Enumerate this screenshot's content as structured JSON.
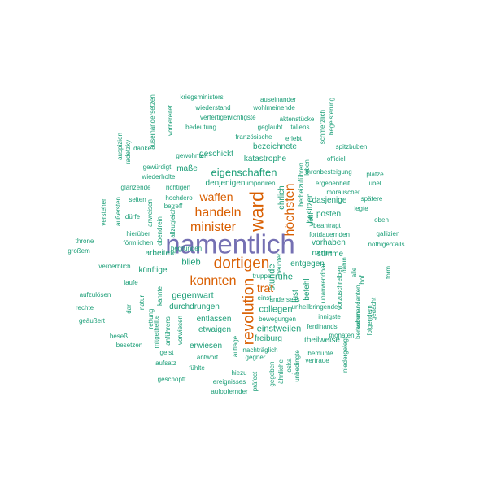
{
  "palette": {
    "large": "#7570b3",
    "medium": "#d95f02",
    "small": "#1b9e77"
  },
  "words": [
    {
      "text": "namentlich",
      "size": "large",
      "rank": 1
    },
    {
      "text": "dortigen",
      "size": "medium",
      "rank": 2
    },
    {
      "text": "revolution",
      "size": "medium",
      "rank": 2
    },
    {
      "text": "ward",
      "size": "medium",
      "rank": 2
    },
    {
      "text": "konnten",
      "size": "medium",
      "rank": 3
    },
    {
      "text": "minister",
      "size": "medium",
      "rank": 3
    },
    {
      "text": "handeln",
      "size": "medium",
      "rank": 3
    },
    {
      "text": "höchsten",
      "size": "medium",
      "rank": 3
    },
    {
      "text": "waffen",
      "size": "medium",
      "rank": 3
    },
    {
      "text": "trat",
      "size": "medium",
      "rank": 3
    },
    {
      "text": "eigenschaften",
      "size": "small",
      "rank": 4
    },
    {
      "text": "gegenwart",
      "size": "small",
      "rank": 4
    },
    {
      "text": "stunde",
      "size": "small",
      "rank": 4
    },
    {
      "text": "collegen",
      "size": "small",
      "rank": 4
    },
    {
      "text": "blieb",
      "size": "small",
      "rank": 4
    },
    {
      "text": "ruhe",
      "size": "small",
      "rank": 4
    },
    {
      "text": "einstweilen",
      "size": "small",
      "rank": 4
    },
    {
      "text": "freiburg",
      "size": "small",
      "rank": 5
    },
    {
      "text": "durchdrungen",
      "size": "small",
      "rank": 5
    },
    {
      "text": "entlassen",
      "size": "small",
      "rank": 5
    },
    {
      "text": "etwaigen",
      "size": "small",
      "rank": 5
    },
    {
      "text": "posten",
      "size": "small",
      "rank": 5
    },
    {
      "text": "dasjenige",
      "size": "small",
      "rank": 5
    },
    {
      "text": "stimme",
      "size": "small",
      "rank": 5
    },
    {
      "text": "vorhaben",
      "size": "small",
      "rank": 5
    },
    {
      "text": "entgegen",
      "size": "small",
      "rank": 5
    },
    {
      "text": "name",
      "size": "small",
      "rank": 5
    },
    {
      "text": "denjenigen",
      "size": "small",
      "rank": 5
    },
    {
      "text": "bezeichnete",
      "size": "small",
      "rank": 5
    },
    {
      "text": "geschickt",
      "size": "small",
      "rank": 5
    },
    {
      "text": "katastrophe",
      "size": "small",
      "rank": 5
    },
    {
      "text": "maße",
      "size": "small",
      "rank": 5
    },
    {
      "text": "arbeitete",
      "size": "small",
      "rank": 5
    },
    {
      "text": "künftige",
      "size": "small",
      "rank": 5
    },
    {
      "text": "erwiesen",
      "size": "small",
      "rank": 5
    },
    {
      "text": "ehrlich",
      "size": "small",
      "rank": 5
    },
    {
      "text": "besitzen",
      "size": "small",
      "rank": 5
    },
    {
      "text": "theilweise",
      "size": "small",
      "rank": 5
    },
    {
      "text": "lust",
      "size": "small",
      "rank": 5
    },
    {
      "text": "befehl",
      "size": "small",
      "rank": 5
    },
    {
      "text": "kriegsministers",
      "size": "small",
      "rank": 6
    },
    {
      "text": "auseinander",
      "size": "small",
      "rank": 6
    },
    {
      "text": "wiederstand",
      "size": "small",
      "rank": 6
    },
    {
      "text": "wohlmeinende",
      "size": "small",
      "rank": 6
    },
    {
      "text": "verfertiger",
      "size": "small",
      "rank": 6
    },
    {
      "text": "wichtigste",
      "size": "small",
      "rank": 6
    },
    {
      "text": "aktenstücke",
      "size": "small",
      "rank": 6
    },
    {
      "text": "bedeutung",
      "size": "small",
      "rank": 6
    },
    {
      "text": "geglaubt",
      "size": "small",
      "rank": 6
    },
    {
      "text": "italiens",
      "size": "small",
      "rank": 6
    },
    {
      "text": "französische",
      "size": "small",
      "rank": 6
    },
    {
      "text": "erlebt",
      "size": "small",
      "rank": 6
    },
    {
      "text": "spitzbuben",
      "size": "small",
      "rank": 6
    },
    {
      "text": "danke",
      "size": "small",
      "rank": 6
    },
    {
      "text": "gewohnten",
      "size": "small",
      "rank": 6
    },
    {
      "text": "officiell",
      "size": "small",
      "rank": 6
    },
    {
      "text": "gewürdigt",
      "size": "small",
      "rank": 6
    },
    {
      "text": "thronbesteigung",
      "size": "small",
      "rank": 6
    },
    {
      "text": "plätze",
      "size": "small",
      "rank": 6
    },
    {
      "text": "wiederholte",
      "size": "small",
      "rank": 6
    },
    {
      "text": "imponiren",
      "size": "small",
      "rank": 6
    },
    {
      "text": "ergebenheit",
      "size": "small",
      "rank": 6
    },
    {
      "text": "übel",
      "size": "small",
      "rank": 6
    },
    {
      "text": "glänzende",
      "size": "small",
      "rank": 6
    },
    {
      "text": "richtigen",
      "size": "small",
      "rank": 6
    },
    {
      "text": "moralischer",
      "size": "small",
      "rank": 6
    },
    {
      "text": "seiten",
      "size": "small",
      "rank": 6
    },
    {
      "text": "hochdero",
      "size": "small",
      "rank": 6
    },
    {
      "text": "spätere",
      "size": "small",
      "rank": 6
    },
    {
      "text": "betreff",
      "size": "small",
      "rank": 6
    },
    {
      "text": "legte",
      "size": "small",
      "rank": 6
    },
    {
      "text": "dürfe",
      "size": "small",
      "rank": 6
    },
    {
      "text": "beantragt",
      "size": "small",
      "rank": 6
    },
    {
      "text": "oben",
      "size": "small",
      "rank": 6
    },
    {
      "text": "hierüber",
      "size": "small",
      "rank": 6
    },
    {
      "text": "fortdauernden",
      "size": "small",
      "rank": 6
    },
    {
      "text": "gallizien",
      "size": "small",
      "rank": 6
    },
    {
      "text": "throne",
      "size": "small",
      "rank": 6
    },
    {
      "text": "förmlichen",
      "size": "small",
      "rank": 6
    },
    {
      "text": "nöthigenfalls",
      "size": "small",
      "rank": 6
    },
    {
      "text": "großem",
      "size": "small",
      "rank": 6
    },
    {
      "text": "begründen",
      "size": "small",
      "rank": 6
    },
    {
      "text": "verderblich",
      "size": "small",
      "rank": 6
    },
    {
      "text": "laufe",
      "size": "small",
      "rank": 6
    },
    {
      "text": "truppe",
      "size": "small",
      "rank": 6
    },
    {
      "text": "aufzulösen",
      "size": "small",
      "rank": 6
    },
    {
      "text": "einst",
      "size": "small",
      "rank": 6
    },
    {
      "text": "unheilbringende",
      "size": "small",
      "rank": 6
    },
    {
      "text": "rechte",
      "size": "small",
      "rank": 6
    },
    {
      "text": "innigste",
      "size": "small",
      "rank": 6
    },
    {
      "text": "geäußert",
      "size": "small",
      "rank": 6
    },
    {
      "text": "bewegungen",
      "size": "small",
      "rank": 6
    },
    {
      "text": "ferdinands",
      "size": "small",
      "rank": 6
    },
    {
      "text": "beseß",
      "size": "small",
      "rank": 6
    },
    {
      "text": "monaten",
      "size": "small",
      "rank": 6
    },
    {
      "text": "besetzen",
      "size": "small",
      "rank": 6
    },
    {
      "text": "geist",
      "size": "small",
      "rank": 6
    },
    {
      "text": "bemühte",
      "size": "small",
      "rank": 6
    },
    {
      "text": "vertraue",
      "size": "small",
      "rank": 6
    },
    {
      "text": "aufsatz",
      "size": "small",
      "rank": 6
    },
    {
      "text": "antwort",
      "size": "small",
      "rank": 6
    },
    {
      "text": "gegner",
      "size": "small",
      "rank": 6
    },
    {
      "text": "nachträglich",
      "size": "small",
      "rank": 6
    },
    {
      "text": "fühlte",
      "size": "small",
      "rank": 6
    },
    {
      "text": "geschöpft",
      "size": "small",
      "rank": 6
    },
    {
      "text": "hiezu",
      "size": "small",
      "rank": 6
    },
    {
      "text": "ereignisses",
      "size": "small",
      "rank": 6
    },
    {
      "text": "aufopfernder",
      "size": "small",
      "rank": 6
    },
    {
      "text": "auspizien",
      "size": "small",
      "rank": 6
    },
    {
      "text": "radetzky",
      "size": "small",
      "rank": 6
    },
    {
      "text": "auseinandersetzen",
      "size": "small",
      "rank": 6
    },
    {
      "text": "vorbereitet",
      "size": "small",
      "rank": 6
    },
    {
      "text": "schmerzlich",
      "size": "small",
      "rank": 6
    },
    {
      "text": "begeisterung",
      "size": "small",
      "rank": 6
    },
    {
      "text": "außersten",
      "size": "small",
      "rank": 6
    },
    {
      "text": "verstehen",
      "size": "small",
      "rank": 6
    },
    {
      "text": "obendrein",
      "size": "small",
      "rank": 6
    },
    {
      "text": "allzugleich",
      "size": "small",
      "rank": 6
    },
    {
      "text": "anweisen",
      "size": "small",
      "rank": 6
    },
    {
      "text": "herbeizuführen",
      "size": "small",
      "rank": 6
    },
    {
      "text": "leben",
      "size": "small",
      "rank": 6
    },
    {
      "text": "wohl",
      "size": "small",
      "rank": 6
    },
    {
      "text": "heunter",
      "size": "small",
      "rank": 6
    },
    {
      "text": "dahin",
      "size": "small",
      "rank": 6
    },
    {
      "text": "alle",
      "size": "small",
      "rank": 6
    },
    {
      "text": "hof",
      "size": "small",
      "rank": 6
    },
    {
      "text": "form",
      "size": "small",
      "rank": 6
    },
    {
      "text": "gedacht",
      "size": "small",
      "rank": 6
    },
    {
      "text": "vorzuschreiben",
      "size": "small",
      "rank": 6
    },
    {
      "text": "kommandanten",
      "size": "small",
      "rank": 6
    },
    {
      "text": "unanwendbar",
      "size": "small",
      "rank": 6
    },
    {
      "text": "kannte",
      "size": "small",
      "rank": 6
    },
    {
      "text": "natur",
      "size": "small",
      "rank": 6
    },
    {
      "text": "dar",
      "size": "small",
      "rank": 6
    },
    {
      "text": "rettung",
      "size": "small",
      "rank": 6
    },
    {
      "text": "mitgetheilte",
      "size": "small",
      "rank": 6
    },
    {
      "text": "anführens",
      "size": "small",
      "rank": 6
    },
    {
      "text": "vorwiesen",
      "size": "small",
      "rank": 6
    },
    {
      "text": "auflage",
      "size": "small",
      "rank": 6
    },
    {
      "text": "präfect",
      "size": "small",
      "rank": 6
    },
    {
      "text": "gegeben",
      "size": "small",
      "rank": 6
    },
    {
      "text": "ähnliche",
      "size": "small",
      "rank": 6
    },
    {
      "text": "joska",
      "size": "small",
      "rank": 6
    },
    {
      "text": "unbedingte",
      "size": "small",
      "rank": 6
    },
    {
      "text": "niedergelegt",
      "size": "small",
      "rank": 6
    },
    {
      "text": "berauben",
      "size": "small",
      "rank": 6
    },
    {
      "text": "folgendem",
      "size": "small",
      "rank": 6
    },
    {
      "text": "anderseits",
      "size": "small",
      "rank": 6
    },
    {
      "text": "contrasignatur",
      "size": "small",
      "rank": 6
    },
    {
      "text": "riethen",
      "size": "small",
      "rank": 6
    },
    {
      "text": "la",
      "size": "small",
      "rank": 6
    }
  ]
}
